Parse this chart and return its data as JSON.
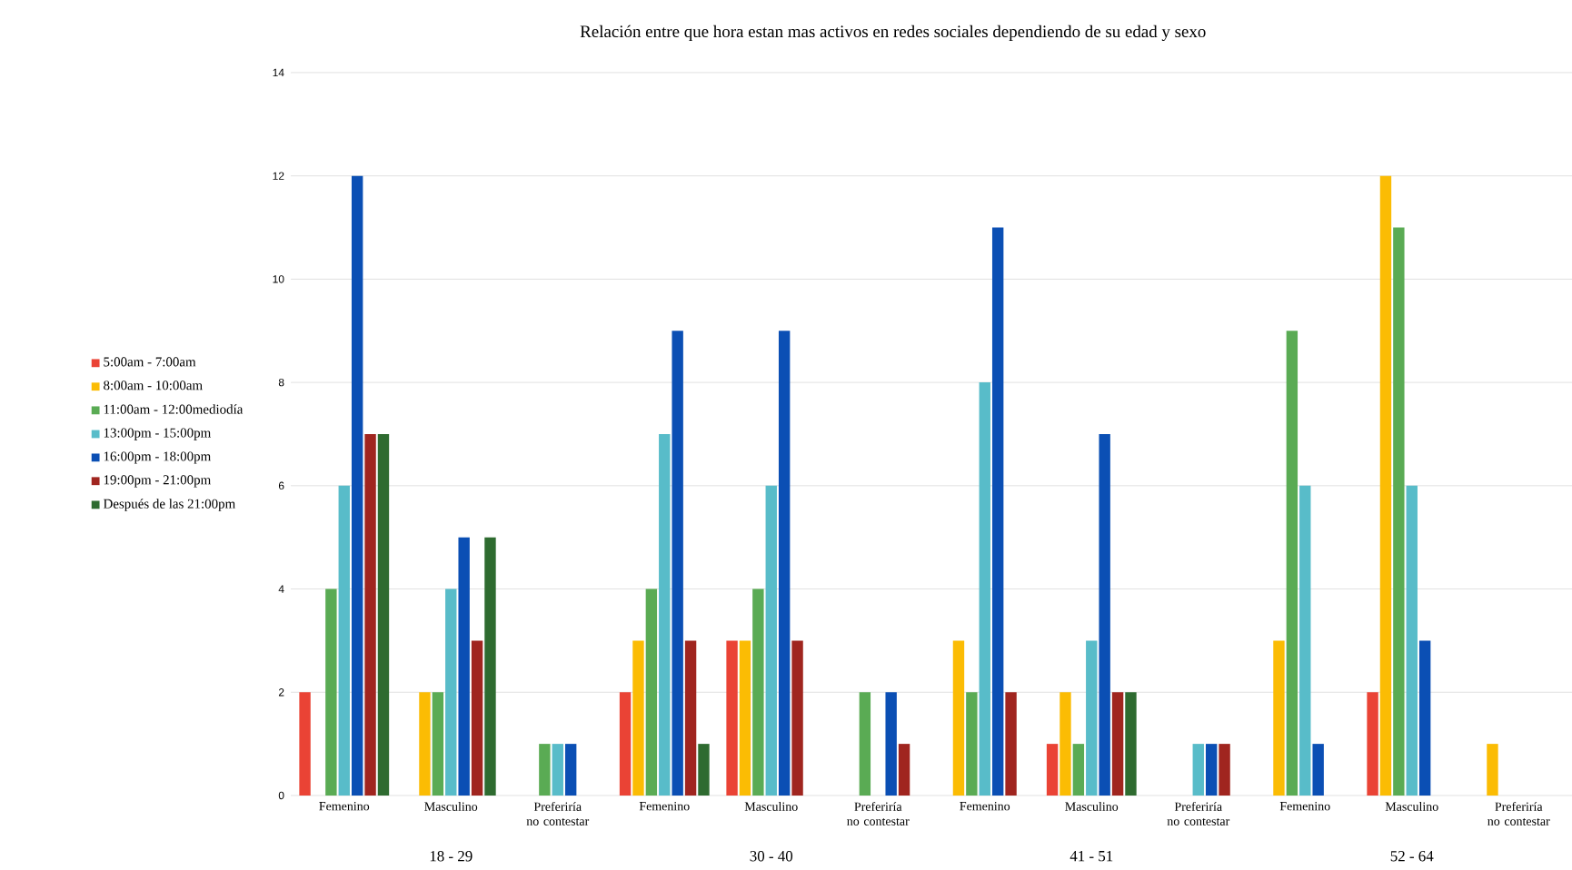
{
  "chart_data": {
    "type": "bar",
    "title": "Relación entre que hora estan mas activos en redes sociales dependiendo de su edad y sexo",
    "categories": [
      "Femenino",
      "Masculino",
      "Preferiría no contestar",
      "Femenino",
      "Masculino",
      "Preferiría no contestar",
      "Femenino",
      "Masculino",
      "Preferiría no contestar",
      "Femenino",
      "Masculino",
      "Preferiría no contestar"
    ],
    "series": [
      {
        "name": "5:00am - 7:00am",
        "color": "#ea4335",
        "values": [
          2,
          0,
          0,
          2,
          3,
          0,
          0,
          1,
          0,
          0,
          2,
          0
        ]
      },
      {
        "name": "8:00am - 10:00am",
        "color": "#fbbc04",
        "values": [
          0,
          2,
          0,
          3,
          3,
          0,
          3,
          2,
          0,
          3,
          12,
          1
        ]
      },
      {
        "name": "11:00am - 12:00mediodía",
        "color": "#5aab54",
        "values": [
          4,
          2,
          1,
          4,
          4,
          2,
          2,
          1,
          0,
          9,
          11,
          0
        ]
      },
      {
        "name": "13:00pm - 15:00pm",
        "color": "#58bcc9",
        "values": [
          6,
          4,
          1,
          7,
          6,
          0,
          8,
          3,
          1,
          6,
          6,
          0
        ]
      },
      {
        "name": "16:00pm - 18:00pm",
        "color": "#0b4fb4",
        "values": [
          12,
          5,
          1,
          9,
          9,
          2,
          11,
          7,
          1,
          1,
          3,
          0
        ]
      },
      {
        "name": "19:00pm - 21:00pm",
        "color": "#a0251f",
        "values": [
          7,
          3,
          0,
          3,
          3,
          1,
          2,
          2,
          1,
          0,
          0,
          0
        ]
      },
      {
        "name": "Después de las 21:00pm",
        "color": "#2e6b30",
        "values": [
          7,
          5,
          0,
          1,
          0,
          0,
          0,
          2,
          0,
          0,
          0,
          0
        ]
      }
    ],
    "annotations": [
      "18 - 29",
      "30 - 40",
      "41 - 51",
      "52 - 64"
    ],
    "ylim": [
      0,
      14
    ],
    "yticks": [
      0,
      2,
      4,
      6,
      8,
      10,
      12,
      14
    ],
    "grid": "y",
    "legend": "left"
  }
}
